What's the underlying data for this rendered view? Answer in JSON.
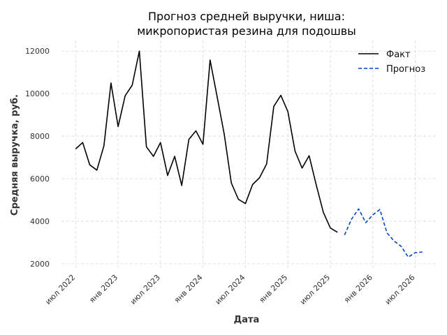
{
  "chart_data": {
    "type": "line",
    "title_lines": [
      "Прогноз средней выручки, ниша:",
      "микропористая резина для подошвы"
    ],
    "xlabel": "Дата",
    "ylabel": "Средняя выручка, руб.",
    "x_ticks": [
      "2022-07",
      "2023-01",
      "2023-07",
      "2024-01",
      "2024-07",
      "2025-01",
      "2025-07",
      "2026-01",
      "2026-07"
    ],
    "x_tick_labels": [
      "июл 2022",
      "янв 2023",
      "июл 2023",
      "янв 2024",
      "июл 2024",
      "янв 2025",
      "июл 2025",
      "янв 2026",
      "июл 2026"
    ],
    "y_ticks": [
      2000,
      4000,
      6000,
      8000,
      10000,
      12000
    ],
    "y_tick_labels": [
      "2000",
      "4000",
      "6000",
      "8000",
      "10000",
      "12000"
    ],
    "xlim": [
      "2022-05",
      "2026-10"
    ],
    "ylim": [
      1700,
      12500
    ],
    "grid": true,
    "legend_position": "top-right",
    "series": [
      {
        "name": "Факт",
        "color": "#000000",
        "style": "solid",
        "x": [
          "2022-07",
          "2022-08",
          "2022-09",
          "2022-10",
          "2022-11",
          "2022-12",
          "2023-01",
          "2023-02",
          "2023-03",
          "2023-04",
          "2023-05",
          "2023-06",
          "2023-07",
          "2023-08",
          "2023-09",
          "2023-10",
          "2023-11",
          "2023-12",
          "2024-01",
          "2024-02",
          "2024-03",
          "2024-04",
          "2024-05",
          "2024-06",
          "2024-07",
          "2024-08",
          "2024-09",
          "2024-10",
          "2024-11",
          "2024-12",
          "2025-01",
          "2025-02",
          "2025-03",
          "2025-04",
          "2025-05",
          "2025-06",
          "2025-07",
          "2025-08"
        ],
        "y": [
          7400,
          7700,
          6650,
          6400,
          7550,
          10500,
          8450,
          9900,
          10400,
          12000,
          7500,
          7050,
          7700,
          6150,
          7050,
          5680,
          7850,
          8250,
          7620,
          11580,
          9850,
          8100,
          5800,
          5030,
          4830,
          5720,
          6050,
          6700,
          9400,
          9920,
          9150,
          7300,
          6500,
          7080,
          5700,
          4420,
          3680,
          3480
        ]
      },
      {
        "name": "Прогноз",
        "color": "#0047c8",
        "style": "dashed",
        "x": [
          "2025-09",
          "2025-10",
          "2025-11",
          "2025-12",
          "2026-01",
          "2026-02",
          "2026-03",
          "2026-04",
          "2026-05",
          "2026-06",
          "2026-07",
          "2026-08"
        ],
        "y": [
          3350,
          4100,
          4580,
          3930,
          4300,
          4550,
          3450,
          3070,
          2820,
          2310,
          2520,
          2550
        ]
      }
    ]
  }
}
